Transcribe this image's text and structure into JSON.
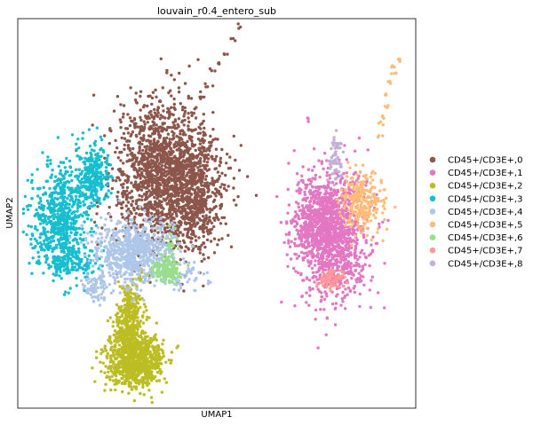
{
  "chart_data": {
    "type": "scatter",
    "title": "louvain_r0.4_entero_sub",
    "xlabel": "UMAP1",
    "ylabel": "UMAP2",
    "xlim": [
      0,
      100
    ],
    "ylim": [
      0,
      100
    ],
    "grid": false,
    "ticks": false,
    "legend_position": "right",
    "series": [
      {
        "name": "CD45+/CD3E+,0",
        "color": "#8c564b",
        "clusters": [
          {
            "cx": 37,
            "cy": 60,
            "sx": 6.5,
            "sy": 9,
            "n": 1800
          },
          {
            "cx": 45,
            "cy": 52,
            "sx": 3,
            "sy": 6,
            "n": 300
          }
        ],
        "trail": [
          [
            42,
            71
          ],
          [
            44,
            76
          ],
          [
            46,
            80
          ],
          [
            47,
            83
          ],
          [
            49,
            87
          ],
          [
            50,
            89
          ],
          [
            52,
            91
          ],
          [
            54,
            95
          ],
          [
            56,
            99
          ]
        ]
      },
      {
        "name": "CD45+/CD3E+,1",
        "color": "#e377c2",
        "clusters": [
          {
            "cx": 79,
            "cy": 45,
            "sx": 4.5,
            "sy": 8,
            "n": 1300
          },
          {
            "cx": 75,
            "cy": 48,
            "sx": 3,
            "sy": 4,
            "n": 200
          }
        ],
        "trail": [
          [
            73,
            74
          ]
        ]
      },
      {
        "name": "CD45+/CD3E+,2",
        "color": "#bcbd22",
        "clusters": [
          {
            "cx": 29,
            "cy": 12,
            "sx": 3.5,
            "sy": 3.8,
            "n": 900
          },
          {
            "cx": 28,
            "cy": 25,
            "sx": 1.5,
            "sy": 3.5,
            "n": 250
          },
          {
            "cx": 27,
            "cy": 19,
            "sx": 1.5,
            "sy": 2,
            "n": 80
          }
        ],
        "trail": [
          [
            36,
            9
          ],
          [
            30,
            33
          ],
          [
            31,
            35
          ]
        ]
      },
      {
        "name": "CD45+/CD3E+,3",
        "color": "#17becf",
        "clusters": [
          {
            "cx": 11,
            "cy": 49,
            "sx": 3.8,
            "sy": 7,
            "n": 700
          },
          {
            "cx": 19,
            "cy": 60,
            "sx": 2,
            "sy": 4,
            "n": 250
          },
          {
            "cx": 13,
            "cy": 37,
            "sx": 3.5,
            "sy": 1.5,
            "n": 120
          }
        ],
        "trail": []
      },
      {
        "name": "CD45+/CD3E+,4",
        "color": "#aec7e8",
        "clusters": [
          {
            "cx": 29,
            "cy": 40,
            "sx": 5,
            "sy": 4,
            "n": 700
          },
          {
            "cx": 19,
            "cy": 31,
            "sx": 1.5,
            "sy": 2,
            "n": 70
          },
          {
            "cx": 40,
            "cy": 34,
            "sx": 3,
            "sy": 2,
            "n": 60
          }
        ],
        "trail": [
          [
            48,
            32
          ],
          [
            44,
            36
          ],
          [
            17,
            43
          ]
        ]
      },
      {
        "name": "CD45+/CD3E+,5",
        "color": "#ffbb78",
        "clusters": [
          {
            "cx": 87,
            "cy": 53,
            "sx": 2.5,
            "sy": 4,
            "n": 260
          }
        ],
        "trail": [
          [
            91,
            70
          ],
          [
            92,
            73
          ],
          [
            92,
            75
          ],
          [
            93,
            78
          ],
          [
            93,
            81
          ],
          [
            94,
            84
          ],
          [
            95,
            86
          ],
          [
            95,
            88
          ],
          [
            96,
            90
          ]
        ]
      },
      {
        "name": "CD45+/CD3E+,6",
        "color": "#98df8a",
        "clusters": [
          {
            "cx": 37,
            "cy": 35,
            "sx": 2,
            "sy": 1.5,
            "n": 110
          },
          {
            "cx": 38,
            "cy": 40,
            "sx": 1,
            "sy": 3,
            "n": 40
          }
        ],
        "trail": []
      },
      {
        "name": "CD45+/CD3E+,7",
        "color": "#ff9896",
        "clusters": [
          {
            "cx": 79,
            "cy": 33,
            "sx": 1.5,
            "sy": 1.5,
            "n": 70
          }
        ],
        "trail": []
      },
      {
        "name": "CD45+/CD3E+,8",
        "color": "#c5b0d5",
        "clusters": [
          {
            "cx": 80,
            "cy": 64,
            "sx": 0.8,
            "sy": 3,
            "n": 60
          }
        ],
        "trail": []
      }
    ]
  }
}
